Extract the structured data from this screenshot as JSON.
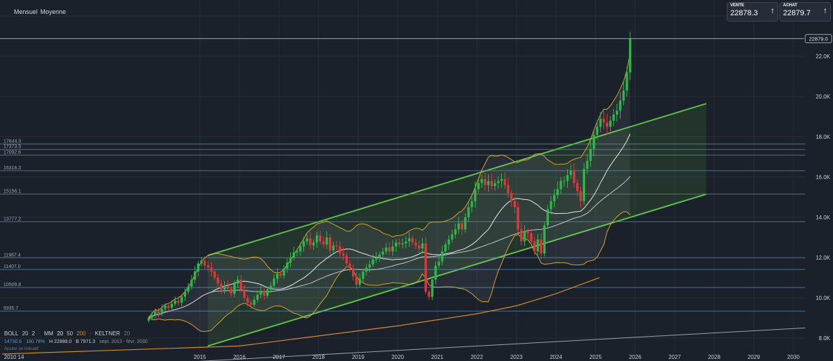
{
  "toolbar": {
    "period_label": "Mensuel",
    "type_label": "Moyenne"
  },
  "quote": {
    "sell": {
      "label": "VENTE",
      "value": "22878.3",
      "icon": "arrow-up-icon"
    },
    "buy": {
      "label": "ACHAT",
      "value": "22879.7",
      "icon": "arrow-up-icon"
    }
  },
  "legend": {
    "boll": "BOLL",
    "boll_period": "20",
    "boll_dev": "2",
    "mm": "MM",
    "mm_20": "20",
    "mm_50": "50",
    "mm_200": "200",
    "keltner": "KELTNER",
    "keltner_period": "20"
  },
  "info": {
    "value1": "14730.6",
    "value2": "180.78%",
    "high": "H 22888.0",
    "low": "B 7971.3",
    "range": "sept. 2013 - févr. 2030"
  },
  "overlay_text": "Ajouter un indicatif",
  "colors": {
    "background": "#1b212a",
    "up": "#2fb84a",
    "down": "#e0383a",
    "channel": "#5fbf4a",
    "level": "#4f86b8",
    "ma200": "#d7892a",
    "bollinger": "#d7a12a"
  },
  "chart_data": {
    "type": "candlestick",
    "yaxis_ticks": [
      "8.0K",
      "10.0K",
      "12.0K",
      "14.0K",
      "16.0K",
      "18.0K",
      "20.0K",
      "22.0K",
      "24.0K"
    ],
    "ylim": [
      7200,
      24800
    ],
    "xaxis_ticks": [
      "2010",
      "14",
      "2015",
      "2016",
      "2017",
      "2018",
      "2019",
      "2020",
      "2021",
      "2022",
      "2023",
      "2024",
      "2025",
      "2026",
      "2027",
      "2028",
      "2029",
      "2030"
    ],
    "x_years": [
      2010.05,
      2010.4,
      2015,
      2016,
      2017,
      2018,
      2019,
      2020,
      2021,
      2022,
      2023,
      2024,
      2025,
      2026,
      2027,
      2028,
      2029,
      2030
    ],
    "xlim": [
      2009.95,
      2030.3
    ],
    "last_price": "22879.0",
    "levels": [
      {
        "label": "17644.3",
        "value": 17644.3
      },
      {
        "label": "17373.5",
        "value": 17373.5
      },
      {
        "label": "17092.6",
        "value": 17092.6
      },
      {
        "label": "16316.3",
        "value": 16316.3
      },
      {
        "label": "15156.1",
        "value": 15156.1
      },
      {
        "label": "13777.2",
        "value": 13777.2
      },
      {
        "label": "11987.4",
        "value": 11987.4
      },
      {
        "label": "11407.0",
        "value": 11407.0
      },
      {
        "label": "10509.8",
        "value": 10509.8
      },
      {
        "label": "9335.7",
        "value": 9335.7
      }
    ],
    "channel": {
      "upper": [
        [
          2015.2,
          12100
        ],
        [
          2027.8,
          19650
        ]
      ],
      "lower": [
        [
          2015.2,
          7600
        ],
        [
          2027.8,
          15150
        ]
      ]
    },
    "ma200": [
      [
        2010.0,
        7200
      ],
      [
        2016,
        7600
      ],
      [
        2018,
        8100
      ],
      [
        2020,
        8600
      ],
      [
        2022,
        9200
      ],
      [
        2023,
        9600
      ],
      [
        2024,
        10200
      ],
      [
        2025.1,
        11000
      ]
    ],
    "long_trend": [
      [
        2010.0,
        6300
      ],
      [
        2030.3,
        8500
      ]
    ],
    "monthly_close": [
      9000,
      9150,
      9300,
      9200,
      9450,
      9600,
      9500,
      9700,
      9850,
      9750,
      10050,
      10300,
      10550,
      10900,
      11300,
      11700,
      11850,
      11600,
      11500,
      11300,
      11000,
      10700,
      10400,
      10600,
      10450,
      10200,
      10700,
      10900,
      10400,
      10000,
      9750,
      9650,
      9900,
      10150,
      10350,
      10100,
      10400,
      10600,
      10950,
      11200,
      11100,
      11450,
      11750,
      12000,
      12250,
      12300,
      12550,
      12800,
      12950,
      12600,
      12750,
      13100,
      12800,
      12650,
      13000,
      12350,
      12600,
      12550,
      12200,
      12100,
      11700,
      11450,
      11050,
      10650,
      10950,
      11300,
      11500,
      11650,
      11900,
      12000,
      12150,
      12300,
      12500,
      12300,
      12550,
      12750,
      12650,
      12700,
      12800,
      12950,
      12750,
      12600,
      12450,
      12700,
      10300,
      10050,
      10900,
      11600,
      11800,
      12300,
      12650,
      12900,
      13150,
      13400,
      13700,
      13400,
      14000,
      14500,
      14800,
      15400,
      15700,
      15900,
      15600,
      15800,
      15550,
      15700,
      15800,
      15900,
      15600,
      15200,
      14800,
      14500,
      13400,
      12800,
      13300,
      13200,
      12800,
      12300,
      12900,
      12200,
      13600,
      14400,
      14800,
      15100,
      15400,
      15800,
      15800,
      16100,
      16300,
      15700,
      15300,
      14800,
      16400,
      16800,
      17400,
      18100,
      18500,
      18900,
      18700,
      18500,
      18800,
      19100,
      19300,
      19800,
      20300,
      21200,
      22879
    ]
  }
}
